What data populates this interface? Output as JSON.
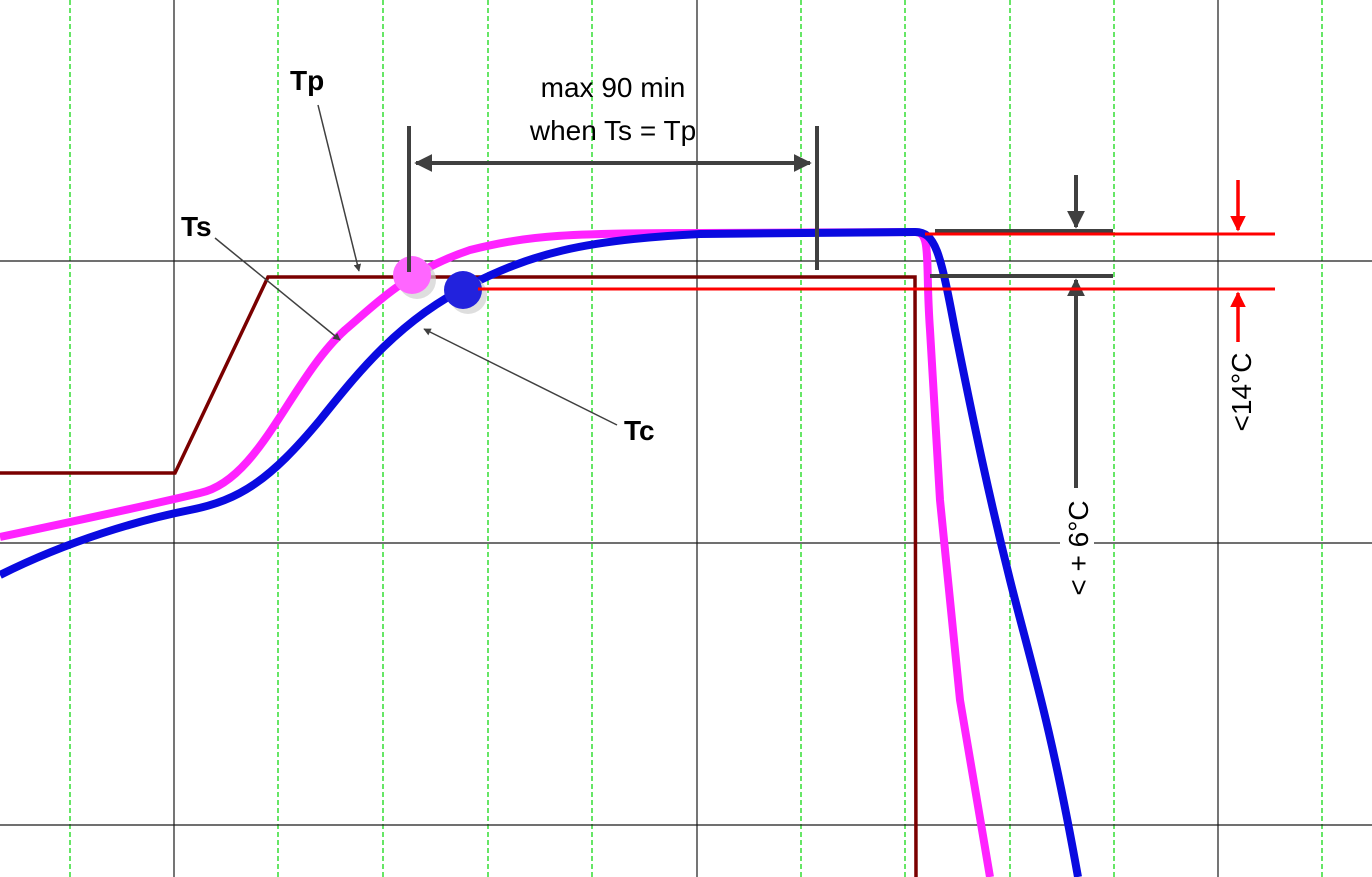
{
  "chart_data": {
    "type": "line",
    "title": "",
    "xlabel": "",
    "ylabel": "",
    "grid": true,
    "series": [
      {
        "color": "#7a0000"
      },
      {
        "color": "#ff22ff"
      },
      {
        "color": "#0a0ae0"
      }
    ],
    "annotations": {
      "tp_label": "Tp",
      "ts_label": "Ts",
      "tc_label": "Tc",
      "duration_line1": "max 90 min",
      "duration_line2": "when Ts = Tp",
      "tolerance_small": "< + 6°C",
      "tolerance_large": "<14°C"
    },
    "colors": {
      "major_grid": "#1a1a1a",
      "minor_grid": "#33dd33",
      "annotation_dark": "#404040",
      "annotation_red": "#ff0000",
      "tp_marker": "#ff66ff",
      "tc_marker": "#2222dd"
    }
  }
}
